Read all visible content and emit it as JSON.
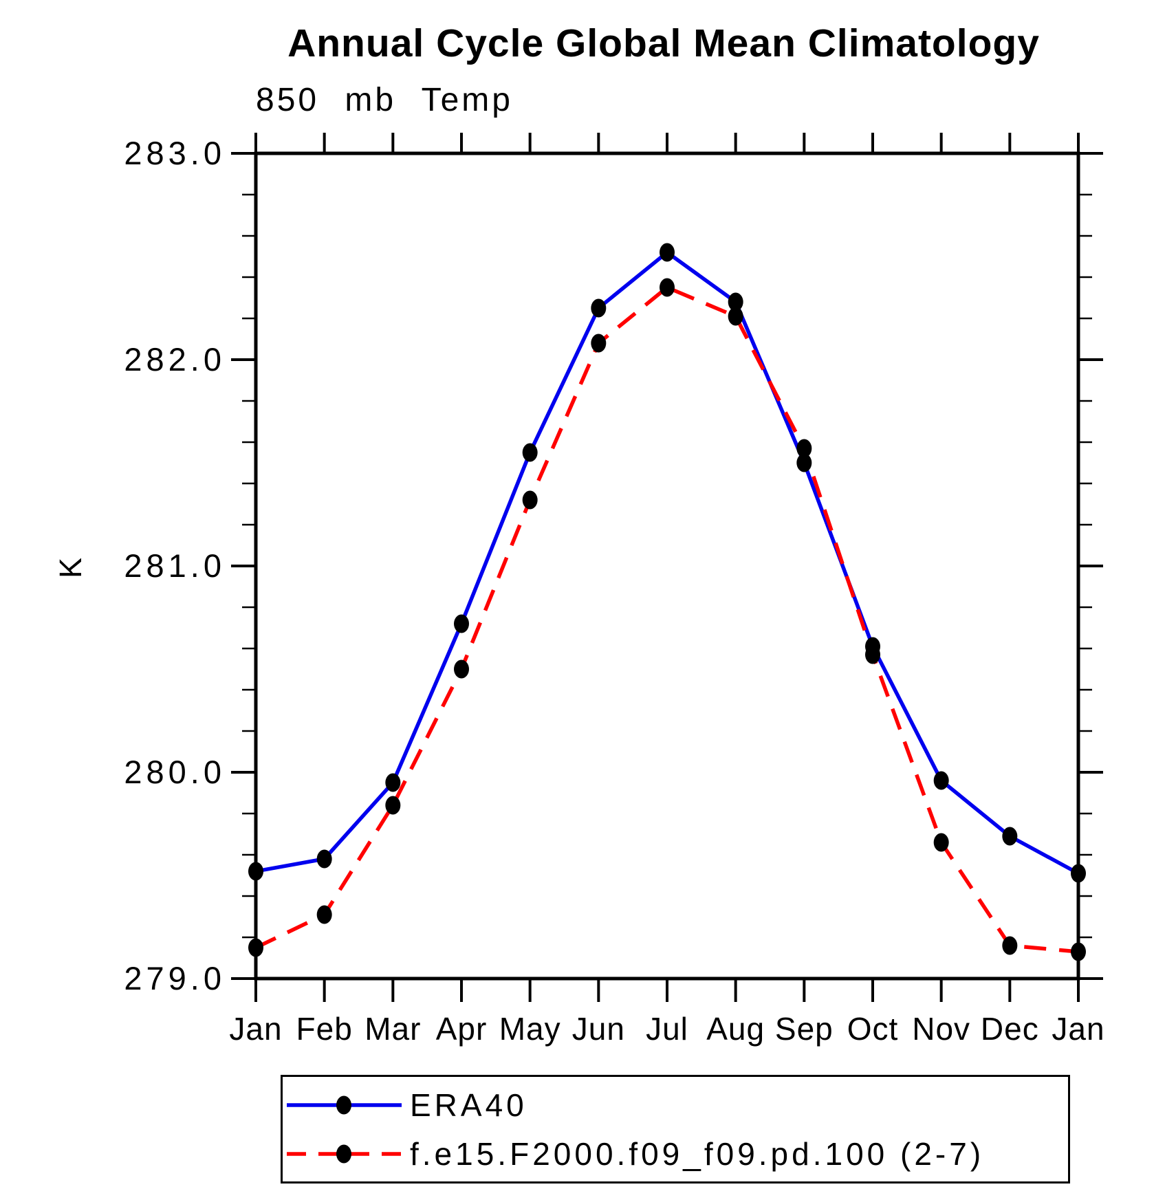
{
  "title": "Annual Cycle Global Mean Climatology",
  "subtitle": "850 mb Temp",
  "ylabel": "K",
  "chart_data": {
    "type": "line",
    "categories": [
      "Jan",
      "Feb",
      "Mar",
      "Apr",
      "May",
      "Jun",
      "Jul",
      "Aug",
      "Sep",
      "Oct",
      "Nov",
      "Dec",
      "Jan"
    ],
    "series": [
      {
        "name": "ERA40",
        "color": "#0000ee",
        "style": "solid",
        "marker": "filled-black-dot",
        "values": [
          279.52,
          279.58,
          279.95,
          280.72,
          281.55,
          282.25,
          282.52,
          282.28,
          281.5,
          280.61,
          279.96,
          279.69,
          279.51
        ]
      },
      {
        "name": "f.e15.F2000.f09_f09.pd.100 (2-7)",
        "color": "#ff0000",
        "style": "dashed",
        "marker": "filled-black-dot",
        "values": [
          279.15,
          279.31,
          279.84,
          280.5,
          281.32,
          282.08,
          282.35,
          282.21,
          281.57,
          280.57,
          279.66,
          279.16,
          279.13
        ]
      }
    ],
    "xlabel": "",
    "ylabel": "K",
    "ylim": [
      279.0,
      283.0
    ],
    "ytick_interval": 1.0,
    "yminor_interval": 0.2,
    "ytick_labels": [
      "279.0",
      "280.0",
      "281.0",
      "282.0",
      "283.0"
    ],
    "grid": false,
    "axis_color": "#000000",
    "marker_color": "#000000",
    "legend_position": "bottom-left-box"
  },
  "legend": {
    "entries": [
      {
        "label": "ERA40"
      },
      {
        "label": "f.e15.F2000.f09_f09.pd.100 (2-7)"
      }
    ]
  }
}
